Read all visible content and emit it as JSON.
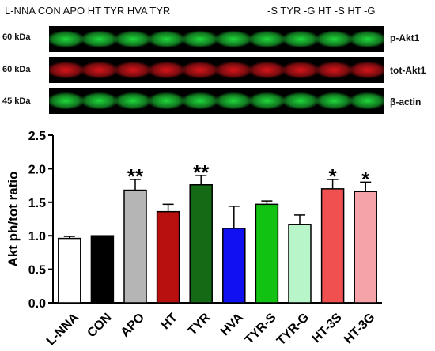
{
  "blot": {
    "lane_labels_left": "L-NNA CON APO HT TYR HVA TYR",
    "lane_labels_right": "-S TYR -G HT -S HT -G",
    "rows": [
      {
        "size": "60 kDa",
        "protein": "p-Akt1",
        "color": "#1fd83a"
      },
      {
        "size": "60 kDa",
        "protein": "tot-Akt1",
        "color": "#d8151a"
      },
      {
        "size": "45 kDa",
        "protein": "β-actin",
        "color": "#1fd83a"
      }
    ]
  },
  "chart_data": {
    "type": "bar",
    "categories": [
      "L-NNA",
      "CON",
      "APO",
      "HT",
      "TYR",
      "HVA",
      "TYR-S",
      "TYR-G",
      "HT-3S",
      "HT-3G"
    ],
    "values": [
      0.96,
      1.0,
      1.68,
      1.36,
      1.76,
      1.11,
      1.47,
      1.17,
      1.7,
      1.66
    ],
    "errors": [
      0.03,
      0.0,
      0.16,
      0.11,
      0.14,
      0.33,
      0.05,
      0.14,
      0.14,
      0.14
    ],
    "significance": [
      "",
      "",
      "**",
      "",
      "**",
      "",
      "",
      "",
      "*",
      "*"
    ],
    "colors": [
      "#ffffff",
      "#000000",
      "#b5b5b5",
      "#b80f0f",
      "#156b15",
      "#1010f0",
      "#12c212",
      "#b8f5c8",
      "#f05050",
      "#f5a3a8"
    ],
    "ylabel": "Akt ph/tot ratio",
    "xlabel": "",
    "title": "",
    "ylim": [
      0,
      2.5
    ],
    "yticks": [
      "0.0",
      "0.5",
      "1.0",
      "1.5",
      "2.0",
      "2.5"
    ]
  }
}
